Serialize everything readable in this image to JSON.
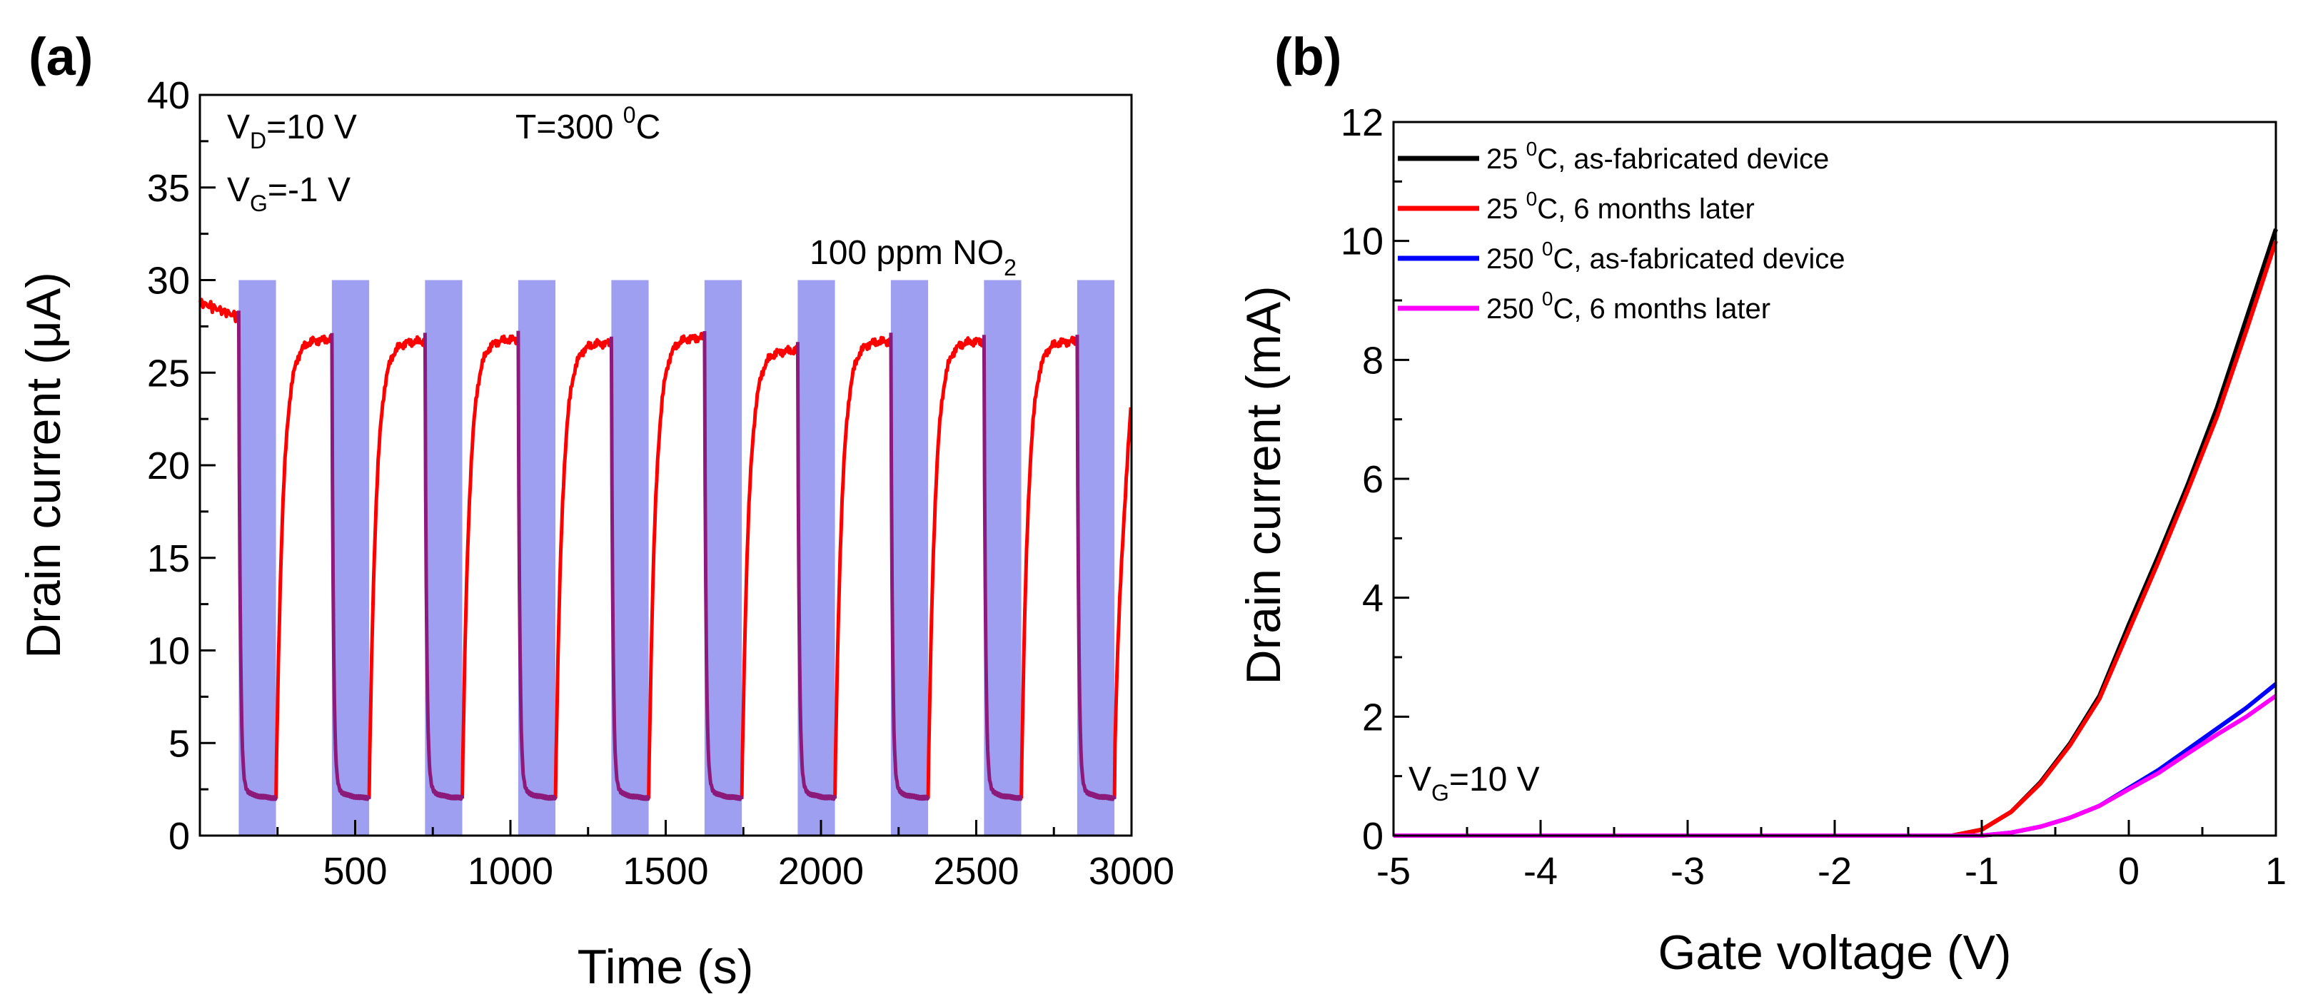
{
  "chart_data": [
    {
      "type": "line",
      "panel_label": "(a)",
      "title": "",
      "xlabel": "Time (s)",
      "ylabel": "Drain current (μA)",
      "xlim": [
        0,
        3000
      ],
      "ylim": [
        0,
        40
      ],
      "xticks": [
        500,
        1000,
        1500,
        2000,
        2500,
        3000
      ],
      "yticks": [
        0,
        5,
        10,
        15,
        20,
        25,
        30,
        35,
        40
      ],
      "legend": [],
      "annotations": {
        "vd": {
          "base": "V",
          "sub": "D",
          "rest": "=10 V"
        },
        "vg": {
          "base": "V",
          "sub": "G",
          "rest": "=-1 V"
        },
        "temp": {
          "base": "T=300 ",
          "sup": "0",
          "rest": "C"
        },
        "gas": {
          "base": "100 ppm NO",
          "sub": "2"
        }
      },
      "gas_pulses": {
        "level": 30,
        "color": "#9a9af0",
        "intervals": [
          [
            125,
            245
          ],
          [
            425,
            545
          ],
          [
            725,
            845
          ],
          [
            1025,
            1145
          ],
          [
            1325,
            1445
          ],
          [
            1625,
            1745
          ],
          [
            1925,
            2045
          ],
          [
            2225,
            2345
          ],
          [
            2525,
            2645
          ],
          [
            2825,
            2945
          ]
        ]
      },
      "series": [
        {
          "name": "Drain current",
          "color": "#ff0000",
          "overlap_color": "#8b1a7a",
          "start_level": 28.8,
          "pre_pulse_level": 28.0,
          "min_level": 2.0,
          "peak_levels": [
            26.8,
            26.7,
            26.8,
            26.6,
            26.9,
            26.2,
            26.7,
            26.7,
            26.7
          ],
          "end_level": 23.5
        }
      ]
    },
    {
      "type": "line",
      "panel_label": "(b)",
      "title": "",
      "xlabel": "Gate voltage (V)",
      "ylabel": "Drain current (mA)",
      "xlim": [
        -5,
        1
      ],
      "ylim": [
        0,
        12
      ],
      "xticks": [
        -5,
        -4,
        -3,
        -2,
        -1,
        0,
        1
      ],
      "yticks": [
        0,
        2,
        4,
        6,
        8,
        10,
        12
      ],
      "legend_position": "top-left",
      "annotations": {
        "vg": {
          "base": "V",
          "sub": "G",
          "rest": "=10 V"
        }
      },
      "series": [
        {
          "name": {
            "a": "25 ",
            "sup": "0",
            "b": "C, as-fabricated device"
          },
          "color": "#000000",
          "x": [
            -5,
            -1.2,
            -1.0,
            -0.8,
            -0.6,
            -0.4,
            -0.2,
            0,
            0.2,
            0.4,
            0.6,
            0.8,
            1.0
          ],
          "y": [
            0,
            0,
            0.1,
            0.4,
            0.9,
            1.55,
            2.35,
            3.55,
            4.7,
            5.9,
            7.2,
            8.7,
            10.2
          ]
        },
        {
          "name": {
            "a": "25 ",
            "sup": "0",
            "b": "C, 6 months later"
          },
          "color": "#ff0000",
          "x": [
            -5,
            -1.2,
            -1.0,
            -0.8,
            -0.6,
            -0.4,
            -0.2,
            0,
            0.2,
            0.4,
            0.6,
            0.8,
            1.0
          ],
          "y": [
            0,
            0,
            0.1,
            0.4,
            0.88,
            1.52,
            2.3,
            3.45,
            4.6,
            5.8,
            7.05,
            8.5,
            10.0
          ]
        },
        {
          "name": {
            "a": "250 ",
            "sup": "0",
            "b": "C, as-fabricated device"
          },
          "color": "#0000ff",
          "x": [
            -5,
            -1.0,
            -0.8,
            -0.6,
            -0.4,
            -0.2,
            0,
            0.2,
            0.4,
            0.6,
            0.8,
            1.0
          ],
          "y": [
            0,
            0,
            0.05,
            0.15,
            0.3,
            0.5,
            0.8,
            1.1,
            1.45,
            1.8,
            2.15,
            2.55
          ]
        },
        {
          "name": {
            "a": "250 ",
            "sup": "0",
            "b": "C, 6 months later"
          },
          "color": "#ff00ff",
          "x": [
            -5,
            -1.0,
            -0.8,
            -0.6,
            -0.4,
            -0.2,
            0,
            0.2,
            0.4,
            0.6,
            0.8,
            1.0
          ],
          "y": [
            0,
            0,
            0.05,
            0.15,
            0.3,
            0.5,
            0.78,
            1.05,
            1.38,
            1.7,
            2.0,
            2.35
          ]
        }
      ]
    }
  ]
}
